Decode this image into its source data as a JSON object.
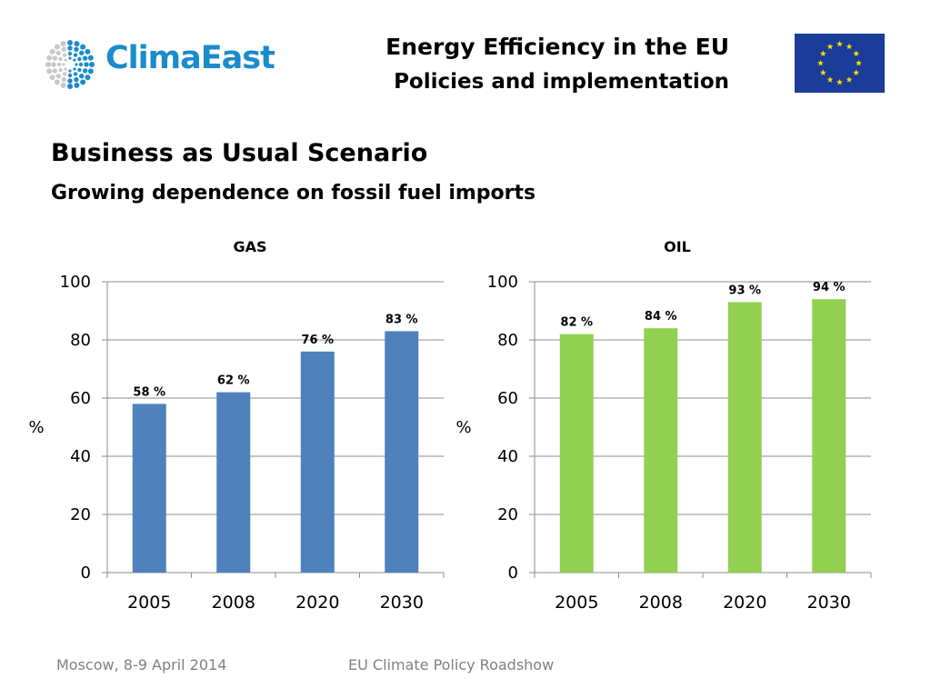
{
  "logo": {
    "text": "ClimaEast",
    "color": "#1a8ccb",
    "dot_colors": [
      "#1a8ccb",
      "#c8c8c8"
    ]
  },
  "header": {
    "title_line1": "Energy Efficiency in the EU",
    "title_line2": "Policies and implementation"
  },
  "flag": {
    "name": "eu-flag",
    "background": "#1b3c99",
    "star_color": "#ffdd00",
    "star_count": 12
  },
  "slide": {
    "title": "Business as Usual Scenario",
    "subtitle": "Growing dependence on fossil fuel imports"
  },
  "footer": {
    "left": "Moscow, 8-9 April 2014",
    "center": "EU Climate Policy Roadshow"
  },
  "chart_data": [
    {
      "type": "bar",
      "id": "gas",
      "title": "GAS",
      "categories": [
        "2005",
        "2008",
        "2020",
        "2030"
      ],
      "values": [
        58,
        62,
        76,
        83
      ],
      "data_labels": [
        "58 %",
        "62 %",
        "76 %",
        "83 %"
      ],
      "xlabel": "",
      "ylabel": "%",
      "ylim": [
        0,
        100
      ],
      "yticks": [
        0,
        20,
        40,
        60,
        80,
        100
      ],
      "grid": true,
      "color": "#4f81bd"
    },
    {
      "type": "bar",
      "id": "oil",
      "title": "OIL",
      "categories": [
        "2005",
        "2008",
        "2020",
        "2030"
      ],
      "values": [
        82,
        84,
        93,
        94
      ],
      "data_labels": [
        "82 %",
        "84 %",
        "93 %",
        "94 %"
      ],
      "xlabel": "",
      "ylabel": "%",
      "ylim": [
        0,
        100
      ],
      "yticks": [
        0,
        20,
        40,
        60,
        80,
        100
      ],
      "grid": true,
      "color": "#92d050"
    }
  ]
}
